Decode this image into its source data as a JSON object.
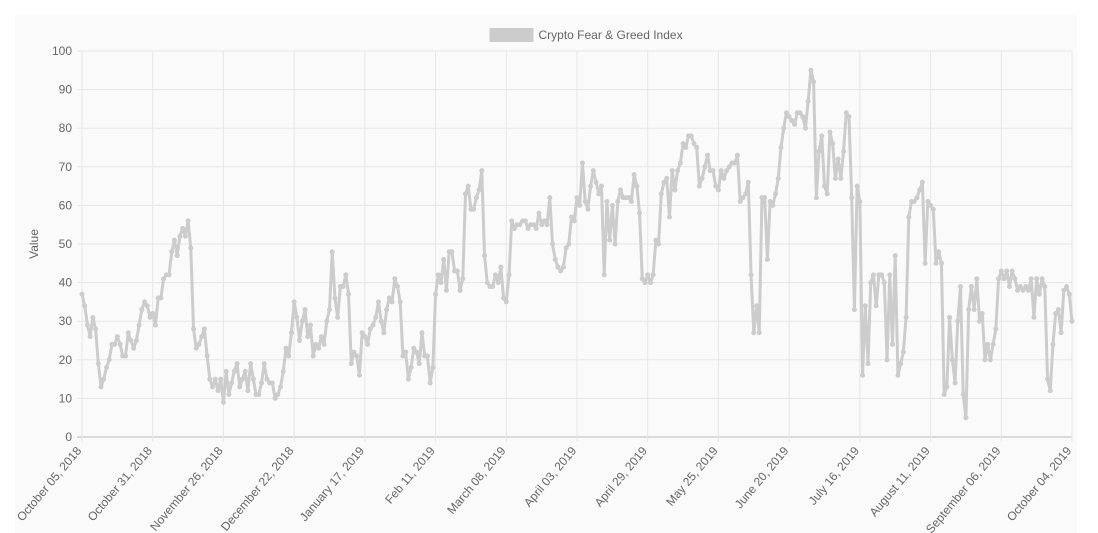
{
  "chart_data": {
    "type": "line",
    "y_label": "Value",
    "ylim": [
      0,
      100
    ],
    "yticks": [
      0,
      10,
      20,
      30,
      40,
      50,
      60,
      70,
      80,
      90,
      100
    ],
    "grid": true,
    "legend": "top",
    "categories": [
      "October 05, 2018",
      null,
      null,
      null,
      null,
      null,
      null,
      null,
      null,
      null,
      null,
      null,
      null,
      null,
      null,
      null,
      null,
      null,
      null,
      null,
      null,
      null,
      null,
      null,
      null,
      null,
      "October 31, 2018",
      null,
      null,
      null,
      null,
      null,
      null,
      null,
      null,
      null,
      null,
      null,
      null,
      null,
      null,
      null,
      null,
      null,
      null,
      null,
      null,
      null,
      null,
      null,
      null,
      null,
      "November 26, 2018",
      null,
      null,
      null,
      null,
      null,
      null,
      null,
      null,
      null,
      null,
      null,
      null,
      null,
      null,
      null,
      null,
      null,
      null,
      null,
      null,
      null,
      null,
      null,
      null,
      null,
      "December 22, 2018",
      null,
      null,
      null,
      null,
      null,
      null,
      null,
      null,
      null,
      null,
      null,
      null,
      null,
      null,
      null,
      null,
      null,
      null,
      null,
      null,
      null,
      null,
      null,
      null,
      null,
      "January 17, 2019",
      null,
      null,
      null,
      null,
      null,
      null,
      null,
      null,
      null,
      null,
      null,
      null,
      null,
      null,
      null,
      null,
      null,
      null,
      null,
      null,
      null,
      null,
      null,
      null,
      null,
      "Feb 11, 2019",
      null,
      null,
      null,
      null,
      null,
      null,
      null,
      null,
      null,
      null,
      null,
      null,
      null,
      null,
      null,
      null,
      null,
      null,
      null,
      null,
      null,
      null,
      null,
      null,
      null,
      "March 08, 2019",
      null,
      null,
      null,
      null,
      null,
      null,
      null,
      null,
      null,
      null,
      null,
      null,
      null,
      null,
      null,
      null,
      null,
      null,
      null,
      null,
      null,
      null,
      null,
      null,
      null,
      "April 03, 2019",
      null,
      null,
      null,
      null,
      null,
      null,
      null,
      null,
      null,
      null,
      null,
      null,
      null,
      null,
      null,
      null,
      null,
      null,
      null,
      null,
      null,
      null,
      null,
      null,
      null,
      "April 29, 2019",
      null,
      null,
      null,
      null,
      null,
      null,
      null,
      null,
      null,
      null,
      null,
      null,
      null,
      null,
      null,
      null,
      null,
      null,
      null,
      null,
      null,
      null,
      null,
      null,
      null,
      "May 25, 2019",
      null,
      null,
      null,
      null,
      null,
      null,
      null,
      null,
      null,
      null,
      null,
      null,
      null,
      null,
      null,
      null,
      null,
      null,
      null,
      null,
      null,
      null,
      null,
      null,
      null,
      "June 20, 2019",
      null,
      null,
      null,
      null,
      null,
      null,
      null,
      null,
      null,
      null,
      null,
      null,
      null,
      null,
      null,
      null,
      null,
      null,
      null,
      null,
      null,
      null,
      null,
      null,
      null,
      "July 16, 2019",
      null,
      null,
      null,
      null,
      null,
      null,
      null,
      null,
      null,
      null,
      null,
      null,
      null,
      null,
      null,
      null,
      null,
      null,
      null,
      null,
      null,
      null,
      null,
      null,
      null,
      "August 11, 2019",
      null,
      null,
      null,
      null,
      null,
      null,
      null,
      null,
      null,
      null,
      null,
      null,
      null,
      null,
      null,
      null,
      null,
      null,
      null,
      null,
      null,
      null,
      null,
      null,
      null,
      "September 06, 2019",
      null,
      null,
      null,
      null,
      null,
      null,
      null,
      null,
      null,
      null,
      null,
      null,
      null,
      null,
      null,
      null,
      null,
      null,
      null,
      null,
      null,
      null,
      null,
      null,
      null,
      "October 04, 2019"
    ],
    "series": [
      {
        "name": "Crypto Fear & Greed Index",
        "color": "#cccccc",
        "values": [
          37,
          34,
          29,
          26,
          31,
          28,
          19,
          13,
          15,
          18,
          20,
          24,
          24,
          26,
          24,
          21,
          21,
          27,
          25,
          23,
          25,
          29,
          33,
          35,
          34,
          31,
          32,
          29,
          36,
          36,
          41,
          42,
          42,
          48,
          51,
          47,
          52,
          54,
          52,
          56,
          49,
          28,
          23,
          24,
          26,
          28,
          21,
          15,
          13,
          15,
          12,
          15,
          9,
          17,
          11,
          14,
          17,
          19,
          13,
          15,
          17,
          12,
          19,
          15,
          11,
          11,
          14,
          19,
          15,
          14,
          14,
          10,
          11,
          13,
          17,
          23,
          21,
          27,
          35,
          31,
          25,
          30,
          33,
          26,
          29,
          21,
          24,
          23,
          26,
          24,
          30,
          33,
          48,
          36,
          31,
          39,
          39,
          42,
          37,
          19,
          22,
          21,
          16,
          27,
          26,
          24,
          28,
          29,
          31,
          35,
          30,
          27,
          33,
          36,
          35,
          41,
          39,
          35,
          21,
          22,
          15,
          18,
          23,
          22,
          19,
          27,
          21,
          21,
          14,
          18,
          37,
          42,
          40,
          46,
          38,
          48,
          48,
          43,
          43,
          38,
          41,
          63,
          65,
          59,
          59,
          62,
          64,
          69,
          47,
          40,
          39,
          39,
          42,
          40,
          44,
          36,
          35,
          42,
          56,
          54,
          55,
          55,
          56,
          56,
          54,
          55,
          55,
          54,
          58,
          55,
          56,
          55,
          62,
          50,
          46,
          44,
          43,
          44,
          49,
          50,
          57,
          56,
          62,
          60,
          71,
          61,
          59,
          65,
          69,
          66,
          63,
          65,
          42,
          61,
          51,
          60,
          50,
          61,
          64,
          62,
          62,
          62,
          61,
          68,
          65,
          58,
          41,
          40,
          42,
          40,
          42,
          51,
          50,
          63,
          66,
          67,
          57,
          69,
          64,
          69,
          71,
          76,
          75,
          78,
          78,
          76,
          75,
          65,
          67,
          70,
          73,
          69,
          69,
          65,
          64,
          69,
          67,
          69,
          70,
          71,
          71,
          73,
          61,
          62,
          63,
          66,
          42,
          27,
          34,
          27,
          62,
          62,
          46,
          61,
          60,
          63,
          67,
          75,
          80,
          84,
          83,
          82,
          81,
          84,
          84,
          83,
          80,
          87,
          95,
          92,
          62,
          74,
          78,
          65,
          63,
          79,
          76,
          67,
          72,
          67,
          74,
          84,
          83,
          62,
          33,
          65,
          61,
          16,
          34,
          19,
          40,
          42,
          34,
          42,
          42,
          40,
          20,
          42,
          24,
          47,
          16,
          19,
          22,
          31,
          57,
          61,
          61,
          62,
          64,
          66,
          45,
          61,
          60,
          59,
          45,
          48,
          45,
          11,
          13,
          31,
          20,
          14,
          30,
          39,
          11,
          5,
          33,
          39,
          33,
          41,
          30,
          32,
          20,
          24,
          20,
          24,
          28,
          41,
          43,
          41,
          43,
          39,
          43,
          41,
          38,
          39,
          38,
          39,
          38,
          41,
          31,
          41,
          37,
          41,
          39,
          15,
          12,
          24,
          32,
          33,
          27,
          38,
          39,
          37,
          30
        ]
      }
    ]
  }
}
